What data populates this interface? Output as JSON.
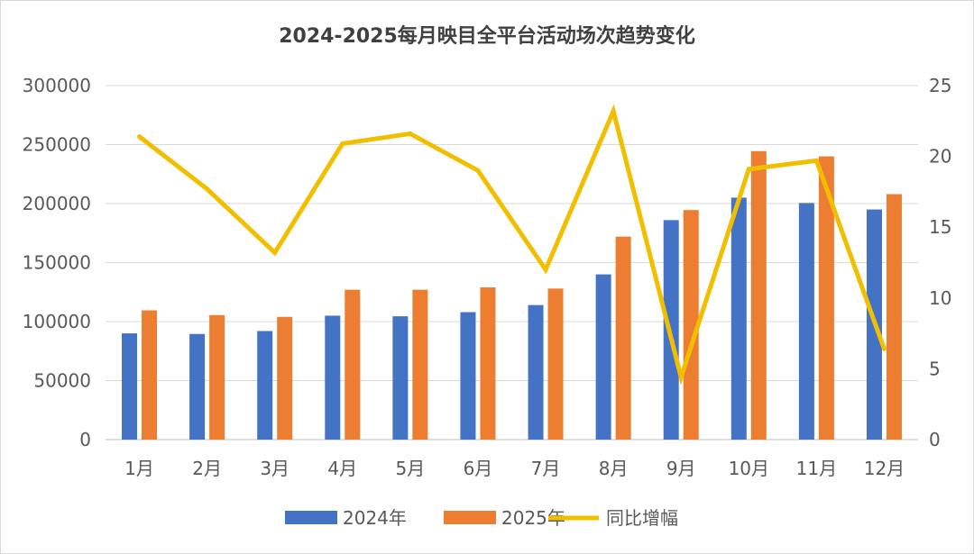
{
  "chart_data": {
    "type": "bar",
    "title": "2024-2025每月映目全平台活动场次趋势变化",
    "categories": [
      "1月",
      "2月",
      "3月",
      "4月",
      "5月",
      "6月",
      "7月",
      "8月",
      "9月",
      "10月",
      "11月",
      "12月"
    ],
    "series": [
      {
        "name": "2024年",
        "type": "bar",
        "axis": "left",
        "color": "#4472C4",
        "values": [
          90000,
          89500,
          92000,
          105000,
          104500,
          108000,
          114000,
          140000,
          186000,
          205000,
          200500,
          195000
        ]
      },
      {
        "name": "2025年",
        "type": "bar",
        "axis": "left",
        "color": "#ED7D31",
        "values": [
          109500,
          105500,
          104000,
          127000,
          127000,
          129000,
          128000,
          172000,
          194500,
          244500,
          240000,
          208000
        ]
      },
      {
        "name": "同比增幅",
        "type": "line",
        "axis": "right",
        "color": "#F2BE00",
        "values": [
          21.4,
          17.7,
          13.2,
          20.9,
          21.6,
          19.0,
          12.0,
          23.2,
          4.4,
          19.1,
          19.7,
          6.4
        ]
      }
    ],
    "y_left": {
      "min": 0,
      "max": 300000,
      "ticks": [
        "0",
        "50000",
        "100000",
        "150000",
        "200000",
        "250000",
        "300000"
      ]
    },
    "y_right": {
      "min": 0,
      "max": 25,
      "ticks": [
        "0",
        "5",
        "10",
        "15",
        "20",
        "25"
      ]
    },
    "grid": true,
    "legend": "bottom"
  }
}
